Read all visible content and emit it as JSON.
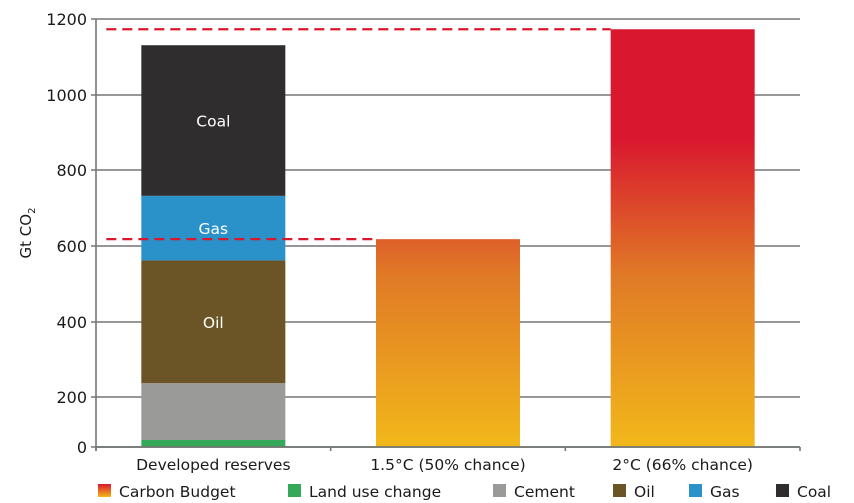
{
  "chart_data": {
    "type": "bar",
    "stacked": true,
    "title": "",
    "xlabel": "",
    "ylabel": "Gt CO",
    "ylabel_subscript": "2",
    "ylim": [
      0,
      1200
    ],
    "yticks": [
      0,
      200,
      400,
      600,
      800,
      1000,
      1200
    ],
    "grid": true,
    "legend_position": "bottom",
    "categories": [
      "Developed reserves",
      "1.5°C (50% chance)",
      "2°C (66% chance)"
    ],
    "series": [
      {
        "name": "Carbon Budget",
        "color": "#d9172f",
        "gradient": [
          "#f2b81a",
          "#e07a26",
          "#d9172f"
        ],
        "values": [
          0,
          618,
          1173
        ]
      },
      {
        "name": "Land use change",
        "color": "#35a85a",
        "values": [
          28,
          0,
          0
        ]
      },
      {
        "name": "Cement",
        "color": "#9a9a98",
        "values": [
          209,
          0,
          0
        ]
      },
      {
        "name": "Oil",
        "color": "#6b5426",
        "values": [
          325,
          0,
          0
        ],
        "label": "Oil"
      },
      {
        "name": "Gas",
        "color": "#2a91c9",
        "values": [
          170,
          0,
          0
        ],
        "label": "Gas"
      },
      {
        "name": "Coal",
        "color": "#302d2e",
        "values": [
          399,
          0,
          0
        ],
        "label": "Coal"
      }
    ],
    "reference_lines": [
      {
        "name": "2°C budget line",
        "value": 1173,
        "style": "dashed",
        "color": "#d9172f"
      },
      {
        "name": "1.5°C budget line",
        "value": 618,
        "style": "dashed",
        "color": "#d9172f"
      }
    ]
  }
}
